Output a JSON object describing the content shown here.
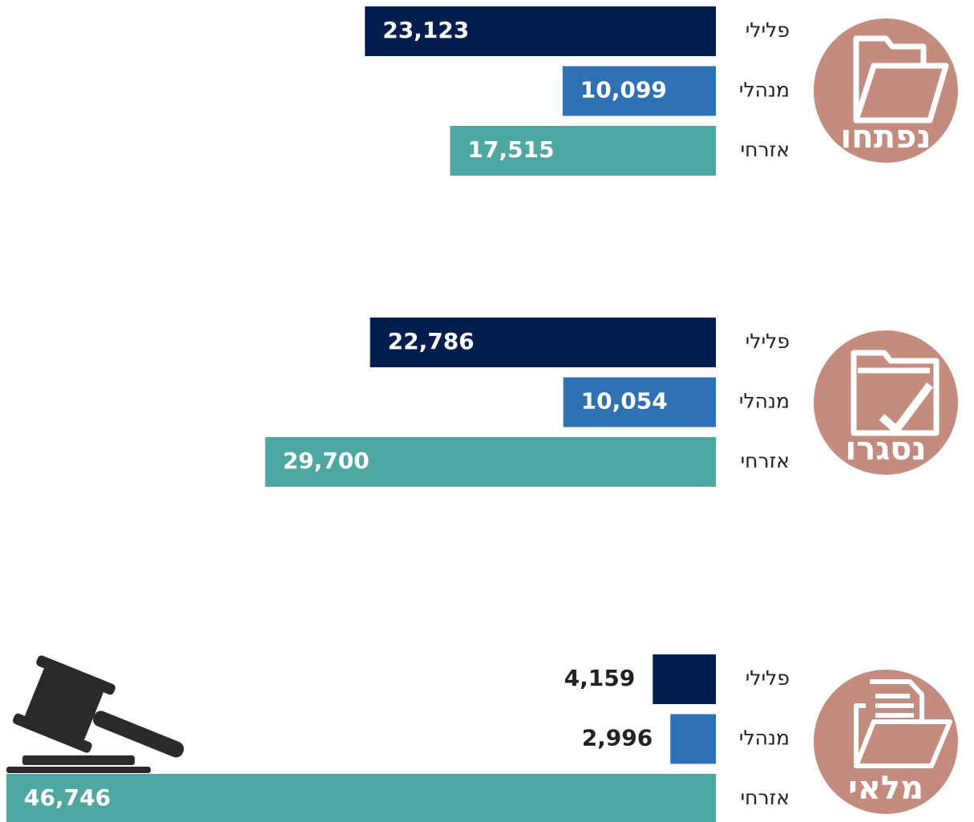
{
  "chart_data": [
    {
      "type": "bar",
      "title": "נפתחו",
      "categories": [
        "פלילי",
        "מנהלי",
        "אזרחי"
      ],
      "values": [
        23123,
        10099,
        17515
      ],
      "value_labels": [
        "23,123",
        "10,099",
        "17,515"
      ],
      "colors": [
        "#021e4f",
        "#2e72b3",
        "#4ea7a0"
      ]
    },
    {
      "type": "bar",
      "title": "נסגרו",
      "categories": [
        "פלילי",
        "מנהלי",
        "אזרחי"
      ],
      "values": [
        22786,
        10054,
        29700
      ],
      "value_labels": [
        "22,786",
        "10,054",
        "29,700"
      ],
      "colors": [
        "#021e4f",
        "#2e72b3",
        "#4ea7a0"
      ]
    },
    {
      "type": "bar",
      "title": "מלאי",
      "categories": [
        "פלילי",
        "מנהלי",
        "אזרחי"
      ],
      "values": [
        4159,
        2996,
        46746
      ],
      "value_labels": [
        "4,159",
        "2,996",
        "46,746"
      ],
      "colors": [
        "#021e4f",
        "#2e72b3",
        "#4ea7a0"
      ]
    }
  ]
}
